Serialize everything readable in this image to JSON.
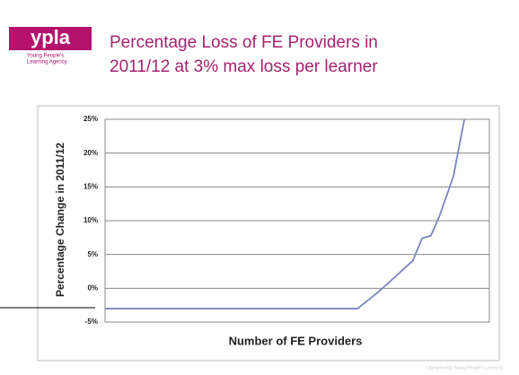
{
  "logo": {
    "text": "ypla",
    "tagline": [
      "Young People's",
      "Learning Agency"
    ]
  },
  "footer": "Championing Young People's Learning",
  "chart_data": {
    "type": "line",
    "title": [
      "Percentage Loss of FE Providers in",
      "2011/12 at 3% max loss per learner"
    ],
    "x_label": "Number of FE Providers",
    "y_label": "Percentage Change in 2011/12",
    "x": [
      0,
      65.7,
      70.8,
      75.5,
      80.1,
      82.5,
      84.8,
      87.1,
      89.5,
      90.7,
      91.8,
      93.5
    ],
    "xlim": [
      0,
      100
    ],
    "series": [
      {
        "name": null,
        "color": "#7a86c2",
        "values": [
          -3,
          -3,
          -0.7,
          1.7,
          4.1,
          7.4,
          7.8,
          10.8,
          14.7,
          16.7,
          20,
          25
        ]
      }
    ],
    "ylim": [
      -5,
      25
    ],
    "yticks": [
      {
        "value": -5,
        "label": "-5%"
      },
      {
        "value": 0,
        "label": "0%"
      },
      {
        "value": 5,
        "label": "5%"
      },
      {
        "value": 10,
        "label": "10%"
      },
      {
        "value": 15,
        "label": "15%"
      },
      {
        "value": 20,
        "label": "20%"
      },
      {
        "value": 25,
        "label": "25%"
      }
    ],
    "grid": true
  }
}
